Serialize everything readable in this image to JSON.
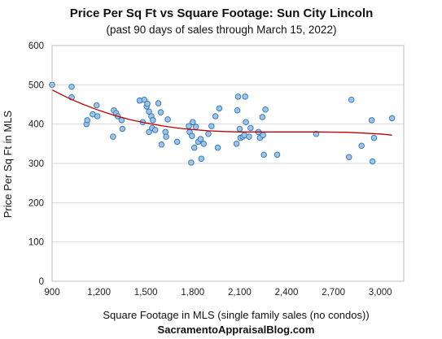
{
  "chart_data": {
    "type": "scatter",
    "title": "Price Per Sq Ft vs Square Footage: Sun City Lincoln",
    "subtitle": "(past 90 days of sales through March 15, 2022)",
    "xlabel": "Square Footage in MLS  (single family sales (no condos))",
    "ylabel": "Price Per Sq Ft in MLS",
    "footer": "SacramentoAppraisalBlog.com",
    "xlim": [
      900,
      3150
    ],
    "ylim": [
      0,
      600
    ],
    "x_ticks": [
      900,
      1200,
      1500,
      1800,
      2100,
      2400,
      2700,
      3000
    ],
    "x_tick_labels": [
      "900",
      "1,200",
      "1,500",
      "1,800",
      "2,100",
      "2,400",
      "2,700",
      "3,000"
    ],
    "y_ticks": [
      0,
      100,
      200,
      300,
      400,
      500,
      600
    ],
    "y_tick_labels": [
      "0",
      "100",
      "200",
      "300",
      "400",
      "500",
      "600"
    ],
    "grid": "horizontal",
    "point_color": "#9dc3e6",
    "point_edge_color": "#2e75b6",
    "trend_color": "#c00000",
    "points": [
      {
        "x": 900,
        "y": 500
      },
      {
        "x": 1025,
        "y": 495
      },
      {
        "x": 1025,
        "y": 468
      },
      {
        "x": 1120,
        "y": 400
      },
      {
        "x": 1125,
        "y": 410
      },
      {
        "x": 1160,
        "y": 425
      },
      {
        "x": 1185,
        "y": 448
      },
      {
        "x": 1190,
        "y": 420
      },
      {
        "x": 1290,
        "y": 368
      },
      {
        "x": 1295,
        "y": 435
      },
      {
        "x": 1310,
        "y": 428
      },
      {
        "x": 1320,
        "y": 420
      },
      {
        "x": 1345,
        "y": 410
      },
      {
        "x": 1350,
        "y": 388
      },
      {
        "x": 1460,
        "y": 460
      },
      {
        "x": 1480,
        "y": 405
      },
      {
        "x": 1490,
        "y": 462
      },
      {
        "x": 1505,
        "y": 445
      },
      {
        "x": 1510,
        "y": 452
      },
      {
        "x": 1520,
        "y": 432
      },
      {
        "x": 1520,
        "y": 380
      },
      {
        "x": 1535,
        "y": 420
      },
      {
        "x": 1540,
        "y": 390
      },
      {
        "x": 1545,
        "y": 410
      },
      {
        "x": 1560,
        "y": 385
      },
      {
        "x": 1580,
        "y": 453
      },
      {
        "x": 1595,
        "y": 430
      },
      {
        "x": 1600,
        "y": 348
      },
      {
        "x": 1625,
        "y": 380
      },
      {
        "x": 1630,
        "y": 368
      },
      {
        "x": 1640,
        "y": 412
      },
      {
        "x": 1700,
        "y": 355
      },
      {
        "x": 1775,
        "y": 395
      },
      {
        "x": 1780,
        "y": 380
      },
      {
        "x": 1790,
        "y": 302
      },
      {
        "x": 1795,
        "y": 370
      },
      {
        "x": 1800,
        "y": 405
      },
      {
        "x": 1810,
        "y": 340
      },
      {
        "x": 1820,
        "y": 393
      },
      {
        "x": 1835,
        "y": 355
      },
      {
        "x": 1850,
        "y": 362
      },
      {
        "x": 1855,
        "y": 312
      },
      {
        "x": 1870,
        "y": 350
      },
      {
        "x": 1900,
        "y": 375
      },
      {
        "x": 1920,
        "y": 395
      },
      {
        "x": 1945,
        "y": 420
      },
      {
        "x": 1960,
        "y": 340
      },
      {
        "x": 1970,
        "y": 440
      },
      {
        "x": 2080,
        "y": 350
      },
      {
        "x": 2085,
        "y": 435
      },
      {
        "x": 2090,
        "y": 470
      },
      {
        "x": 2100,
        "y": 388
      },
      {
        "x": 2105,
        "y": 365
      },
      {
        "x": 2120,
        "y": 368
      },
      {
        "x": 2130,
        "y": 372
      },
      {
        "x": 2135,
        "y": 470
      },
      {
        "x": 2140,
        "y": 405
      },
      {
        "x": 2160,
        "y": 368
      },
      {
        "x": 2170,
        "y": 390
      },
      {
        "x": 2220,
        "y": 380
      },
      {
        "x": 2230,
        "y": 365
      },
      {
        "x": 2245,
        "y": 418
      },
      {
        "x": 2250,
        "y": 372
      },
      {
        "x": 2255,
        "y": 322
      },
      {
        "x": 2265,
        "y": 437
      },
      {
        "x": 2340,
        "y": 322
      },
      {
        "x": 2590,
        "y": 375
      },
      {
        "x": 2800,
        "y": 316
      },
      {
        "x": 2815,
        "y": 462
      },
      {
        "x": 2880,
        "y": 345
      },
      {
        "x": 2945,
        "y": 410
      },
      {
        "x": 2950,
        "y": 305
      },
      {
        "x": 2960,
        "y": 365
      },
      {
        "x": 3075,
        "y": 415
      }
    ],
    "trendline": {
      "x": [
        900,
        1000,
        1100,
        1200,
        1300,
        1400,
        1500,
        1600,
        1700,
        1800,
        1900,
        2000,
        2100,
        2200,
        2400,
        2600,
        2800,
        3000,
        3075
      ],
      "y": [
        487,
        467,
        450,
        435,
        422,
        411,
        403,
        396,
        390,
        386,
        383,
        381,
        380,
        380,
        380,
        380,
        379,
        375,
        372
      ]
    }
  }
}
